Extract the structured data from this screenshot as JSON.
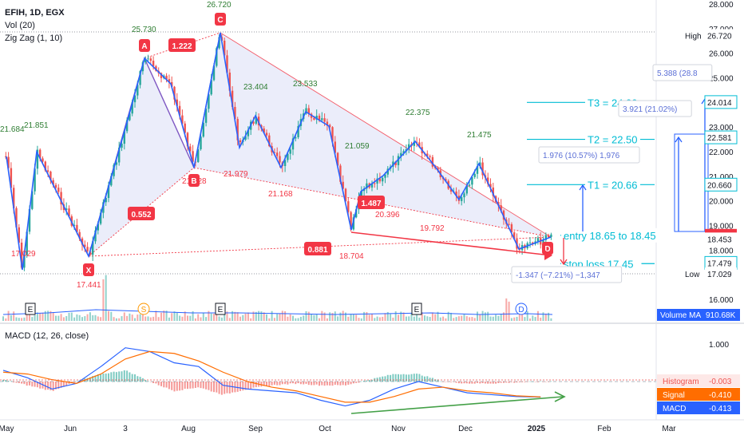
{
  "legend": {
    "symbol": "EFIH, 1D, EGX",
    "volume": "Vol (20)",
    "zigzag": "Zig Zag (1, 10)",
    "macd": "MACD (12, 26, close)"
  },
  "colors": {
    "up": "#26a69a",
    "down": "#ef5350",
    "pattern": "#5b6fd6",
    "target": "#00bcd4",
    "trend": "#f23645",
    "price_tag": "#131722",
    "macd": "#2962ff",
    "signal": "#ff6d00"
  },
  "price_axis": {
    "ticks": [
      "28.000",
      "27.000",
      "26.000",
      "25.000",
      "24.000",
      "23.000",
      "22.000",
      "21.000",
      "20.000",
      "19.000",
      "18.000",
      "17.000",
      "16.000"
    ],
    "tags": [
      {
        "label": "High",
        "value": "26.720",
        "price": 26.72,
        "style": "plain"
      },
      {
        "label": "",
        "value": "24.014",
        "price": 24.014,
        "style": "target"
      },
      {
        "label": "",
        "value": "22.581",
        "price": 22.581,
        "style": "target"
      },
      {
        "label": "",
        "value": "20.660",
        "price": 20.66,
        "style": "target"
      },
      {
        "label": "",
        "value": "18.600",
        "price": 18.6,
        "style": "last"
      },
      {
        "label": "",
        "value": "18.453",
        "price": 18.453,
        "style": "plain"
      },
      {
        "label": "",
        "value": "17.479",
        "price": 17.479,
        "style": "target"
      },
      {
        "label": "Low",
        "value": "17.029",
        "price": 17.029,
        "style": "plain"
      }
    ],
    "volume_tag": {
      "label": "Volume MA",
      "value": "910.68K"
    }
  },
  "macd_axis": {
    "ticks": [
      "1.000",
      "0.000"
    ],
    "tags": [
      {
        "label": "Histogram",
        "value": "-0.003"
      },
      {
        "label": "Signal",
        "value": "-0.410"
      },
      {
        "label": "MACD",
        "value": "-0.413"
      }
    ]
  },
  "time_axis": [
    "May",
    "Jun",
    "3",
    "Aug",
    "Sep",
    "Oct",
    "Nov",
    "Dec",
    "2025",
    "Feb",
    "Mar"
  ],
  "pattern_points": [
    {
      "label": "X",
      "price": 17.441
    },
    {
      "label": "A",
      "price": 25.73
    },
    {
      "label": "B",
      "price": 21.128
    },
    {
      "label": "C",
      "price": 26.72
    },
    {
      "label": "D",
      "price": 18.6
    }
  ],
  "ratios": [
    "1.222",
    "0.552",
    "1.487",
    "0.881"
  ],
  "zigzag_labels": [
    "21.684",
    "21.851",
    "25.730",
    "26.720",
    "21.128",
    "23.404",
    "21.979",
    "23.533",
    "21.168",
    "21.059",
    "20.396",
    "22.375",
    "19.792",
    "21.475",
    "18.704",
    "17.441",
    "17.029"
  ],
  "targets": [
    {
      "label": "T3 = 24.00",
      "price": 24.0
    },
    {
      "label": "T2 = 22.50",
      "price": 22.5
    },
    {
      "label": "T1 = 20.66",
      "price": 20.66
    },
    {
      "label": "entry 18.65 to 18.45",
      "price": 18.6
    },
    {
      "label": "stop loss 17.45",
      "price": 17.45
    }
  ],
  "measures": [
    "5.388 (28.8",
    "3.921 (21.02%)",
    "1.976 (10.57%) 1,976",
    "-1.347 (−7.21%) −1,347"
  ],
  "event_markers": [
    "E",
    "S",
    "E",
    "E",
    "D"
  ],
  "chart_data": [
    {
      "type": "line",
      "title": "EFIH, 1D, EGX",
      "series": [
        {
          "name": "Zig Zag (1, 10)",
          "x": [
            "Apr 28",
            "May 8",
            "May 20",
            "Jun 3",
            "Jun 20",
            "Jul 2",
            "Jul 11",
            "Jul 25",
            "Aug 12",
            "Aug 20",
            "Aug 28",
            "Sep 9",
            "Sep 17",
            "Sep 24",
            "Oct 6",
            "Oct 14",
            "Oct 20",
            "Nov 4",
            "Nov 11",
            "Nov 19",
            "Nov 25",
            "Dec 8",
            "Dec 17",
            "Dec 24"
          ],
          "values": [
            21.684,
            17.5,
            21.851,
            17.441,
            22.4,
            25.73,
            22.7,
            21.128,
            26.72,
            21.9,
            23.404,
            21.979,
            23.533,
            21.168,
            22.4,
            18.704,
            21.059,
            20.396,
            22.375,
            21.1,
            19.792,
            21.475,
            18.453,
            18.6
          ]
        }
      ],
      "ylim": [
        16.5,
        28.0
      ]
    },
    {
      "type": "line",
      "title": "MACD (12, 26, close)",
      "series": [
        {
          "name": "MACD",
          "values": [
            0.3,
            0.1,
            -0.2,
            -0.05,
            0.4,
            0.9,
            0.8,
            0.5,
            0.4,
            -0.1,
            -0.2,
            -0.25,
            -0.3,
            -0.5,
            -0.65,
            -0.5,
            -0.2,
            0.0,
            -0.15,
            -0.3,
            -0.35,
            -0.4,
            -0.413
          ]
        },
        {
          "name": "Signal",
          "values": [
            0.25,
            0.2,
            0.05,
            -0.05,
            0.2,
            0.6,
            0.8,
            0.75,
            0.55,
            0.25,
            0.0,
            -0.15,
            -0.25,
            -0.4,
            -0.55,
            -0.55,
            -0.4,
            -0.2,
            -0.15,
            -0.25,
            -0.3,
            -0.38,
            -0.41
          ]
        },
        {
          "name": "Histogram",
          "values": [
            0.05,
            -0.1,
            -0.25,
            0.0,
            0.2,
            0.3,
            0.0,
            -0.25,
            -0.15,
            -0.35,
            -0.2,
            -0.1,
            -0.05,
            -0.1,
            -0.1,
            0.05,
            0.2,
            0.2,
            0.0,
            -0.05,
            -0.05,
            -0.02,
            -0.003
          ]
        }
      ],
      "ylim": [
        -0.85,
        1.3
      ]
    }
  ]
}
